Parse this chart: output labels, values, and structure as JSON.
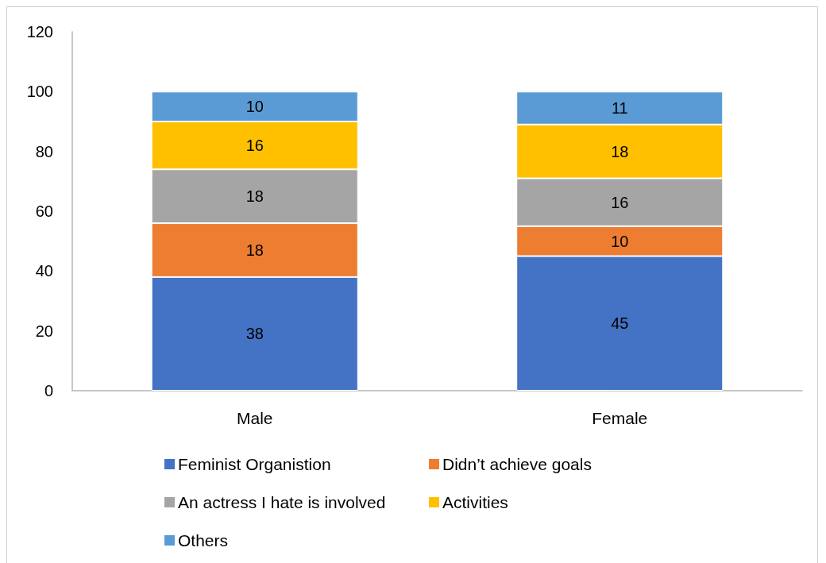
{
  "chart_data": {
    "type": "bar",
    "categories": [
      "Male",
      "Female"
    ],
    "series": [
      {
        "name": "Feminist Organistion",
        "color": "#4472c4",
        "values": [
          38,
          45
        ]
      },
      {
        "name": "Didn’t achieve goals",
        "color": "#ed7d31",
        "values": [
          18,
          10
        ]
      },
      {
        "name": "An actress I hate is involved",
        "color": "#a5a5a5",
        "values": [
          18,
          16
        ]
      },
      {
        "name": "Activities",
        "color": "#ffc000",
        "values": [
          16,
          18
        ]
      },
      {
        "name": "Others",
        "color": "#5b9bd5",
        "values": [
          10,
          11
        ]
      }
    ],
    "stacked": true,
    "ylim": [
      0,
      120
    ],
    "yticks": [
      0,
      20,
      40,
      60,
      80,
      100,
      120
    ],
    "legend": "bottom",
    "data_labels": true
  }
}
